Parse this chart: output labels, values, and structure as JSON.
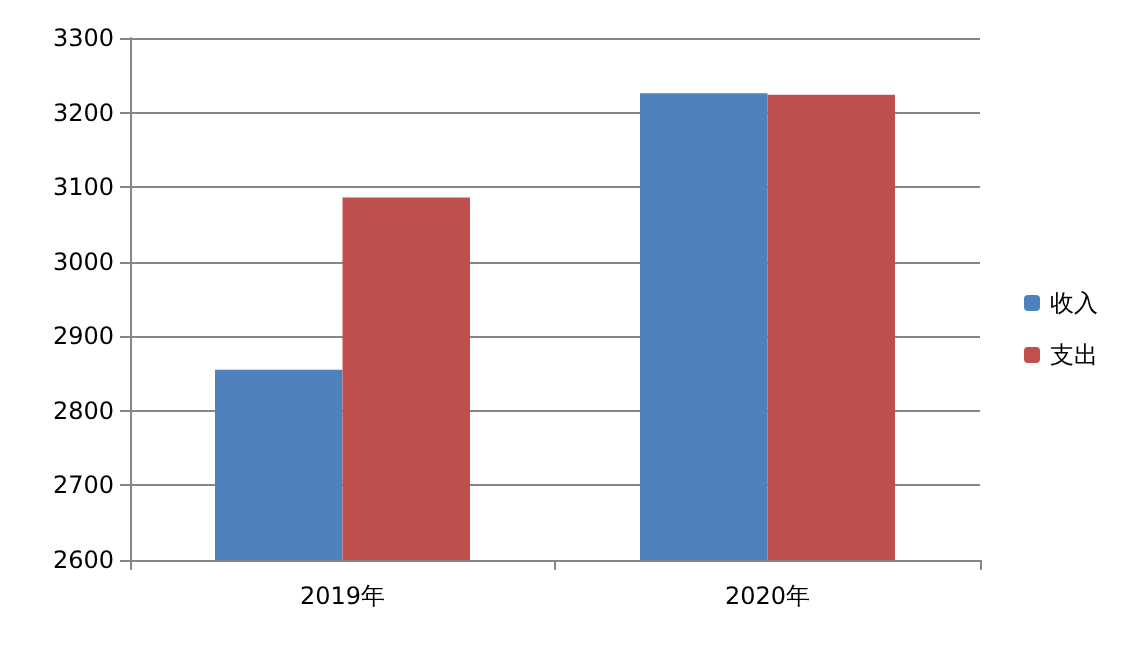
{
  "chart_data": {
    "type": "bar",
    "categories": [
      "2019年",
      "2020年"
    ],
    "series": [
      {
        "name": "收入",
        "color": "#4f81bd",
        "values": [
          2855,
          3226
        ]
      },
      {
        "name": "支出",
        "color": "#c0504d",
        "values": [
          3086,
          3224
        ]
      }
    ],
    "ylim": [
      2600,
      3300
    ],
    "yticks": [
      2600,
      2700,
      2800,
      2900,
      3000,
      3100,
      3200,
      3300
    ],
    "grid": "y",
    "legend": "right"
  }
}
